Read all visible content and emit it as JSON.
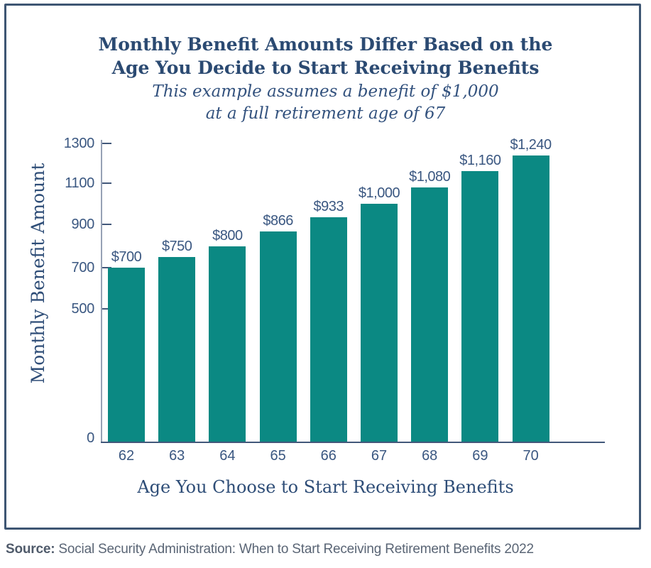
{
  "title": {
    "line1": "Monthly Benefit Amounts Differ Based on the",
    "line2": "Age You Decide to Start Receiving Benefits"
  },
  "subtitle": {
    "line1": "This example assumes a benefit of $1,000",
    "line2": "at a full retirement age of 67"
  },
  "source": {
    "label": "Source:",
    "text": " Social Security Administration: When to Start Receiving Retirement Benefits 2022"
  },
  "colors": {
    "bar_teal": "#0B8983",
    "title_navy": "#2B4A72",
    "label_navy": "#3A5781",
    "axis_light": "#96A1B5",
    "axis_dark": "#42587A",
    "border_navy": "#3E5673",
    "source_gray": "#5A6575"
  },
  "chart_data": {
    "type": "bar",
    "title": "Monthly Benefit Amounts Differ Based on the Age You Decide to Start Receiving Benefits",
    "subtitle": "This example assumes a benefit of $1,000 at a full retirement age of 67",
    "xlabel": "Age You Choose to Start Receiving Benefits",
    "ylabel": "Monthly Benefit Amount",
    "categories": [
      "62",
      "63",
      "64",
      "65",
      "66",
      "67",
      "68",
      "69",
      "70"
    ],
    "values": [
      700,
      750,
      800,
      866,
      933,
      1000,
      1080,
      1160,
      1240
    ],
    "bar_labels": [
      "$700",
      "$750",
      "$800",
      "$866",
      "$933",
      "$1,000",
      "$1,080",
      "$1,160",
      "$1,240"
    ],
    "y_ticks": [
      0,
      500,
      700,
      900,
      1100,
      1300
    ],
    "ylim": [
      0,
      1300
    ],
    "grid": false,
    "legend": "none",
    "bar_color": "#0B8983"
  }
}
